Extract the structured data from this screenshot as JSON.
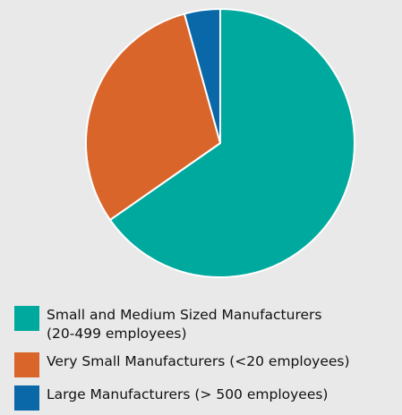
{
  "chart_data": {
    "type": "pie",
    "title": "",
    "series": [
      {
        "name": "Small and Medium Sized Manufacturers (20-499 employees)",
        "label": "Small and Medium Sized Manufacturers\n(20-499 employees)",
        "value": 65.3,
        "color": "#00a99d"
      },
      {
        "name": "Very Small Manufacturers (<20 employees)",
        "label": "Very Small Manufacturers (<20 employees)",
        "value": 30.4,
        "color": "#d9652b"
      },
      {
        "name": "Large Manufacturers (> 500 employees)",
        "label": "Large Manufacturers (> 500 employees)",
        "value": 4.3,
        "color": "#0a67a8"
      }
    ],
    "legend_position": "bottom",
    "start_angle": "12 o'clock",
    "direction": "clockwise"
  }
}
